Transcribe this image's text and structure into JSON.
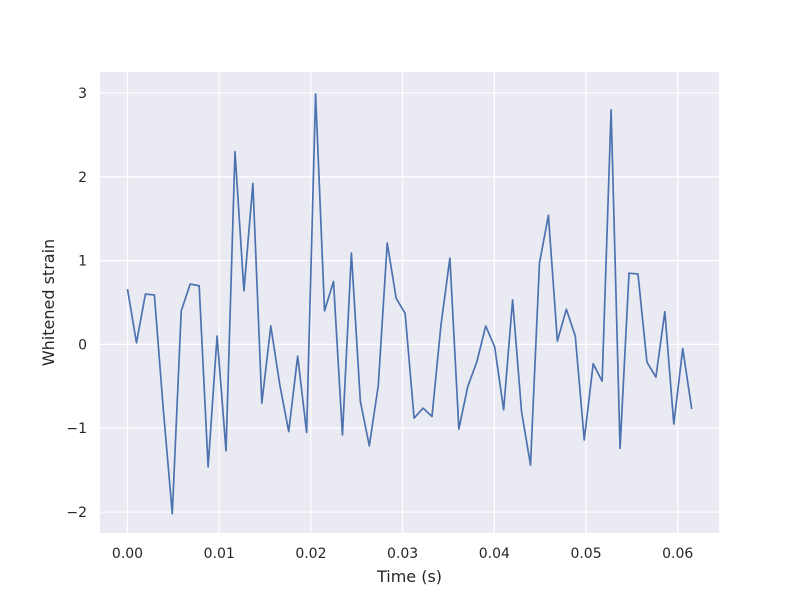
{
  "chart_data": {
    "type": "line",
    "title": "",
    "xlabel": "Time (s)",
    "ylabel": "Whitened strain",
    "xlim": [
      -0.003,
      0.0645
    ],
    "ylim": [
      -2.25,
      3.25
    ],
    "x_ticks": [
      0.0,
      0.01,
      0.02,
      0.03,
      0.04,
      0.05,
      0.06
    ],
    "x_tick_labels": [
      "0.00",
      "0.01",
      "0.02",
      "0.03",
      "0.04",
      "0.05",
      "0.06"
    ],
    "y_ticks": [
      -2,
      -1,
      0,
      1,
      2,
      3
    ],
    "y_tick_labels": [
      "−2",
      "−1",
      "0",
      "1",
      "2",
      "3"
    ],
    "grid": true,
    "background": "#eaeaf2",
    "grid_color": "#ffffff",
    "series": [
      {
        "color": "#4c72b0",
        "x": [
          0.0,
          0.000977,
          0.001953,
          0.00293,
          0.003906,
          0.004883,
          0.005859,
          0.006836,
          0.007813,
          0.008789,
          0.009766,
          0.010742,
          0.011719,
          0.012695,
          0.013672,
          0.014648,
          0.015625,
          0.016602,
          0.017578,
          0.018555,
          0.019531,
          0.020508,
          0.021484,
          0.022461,
          0.023438,
          0.024414,
          0.025391,
          0.026367,
          0.027344,
          0.02832,
          0.029297,
          0.030273,
          0.03125,
          0.032227,
          0.033203,
          0.03418,
          0.035156,
          0.036133,
          0.037109,
          0.038086,
          0.039063,
          0.040039,
          0.041016,
          0.041992,
          0.042969,
          0.043945,
          0.044922,
          0.045898,
          0.046875,
          0.047852,
          0.048828,
          0.049805,
          0.050781,
          0.051758,
          0.052734,
          0.053711,
          0.054688,
          0.055664,
          0.056641,
          0.057617,
          0.058594,
          0.05957,
          0.060547,
          0.061523
        ],
        "y": [
          0.66,
          0.02,
          0.6,
          0.59,
          -0.78,
          -2.02,
          0.4,
          0.72,
          0.7,
          -1.46,
          0.1,
          -1.27,
          2.3,
          0.64,
          1.92,
          -0.7,
          0.22,
          -0.48,
          -1.04,
          -0.14,
          -1.05,
          2.99,
          0.4,
          0.75,
          -1.08,
          1.09,
          -0.68,
          -1.21,
          -0.49,
          1.21,
          0.55,
          0.37,
          -0.88,
          -0.76,
          -0.86,
          0.23,
          1.03,
          -1.01,
          -0.5,
          -0.21,
          0.22,
          -0.03,
          -0.78,
          0.53,
          -0.8,
          -1.44,
          0.97,
          1.54,
          0.04,
          0.42,
          0.1,
          -1.14,
          -0.23,
          -0.44,
          2.8,
          -1.24,
          0.85,
          0.84,
          -0.21,
          -0.39,
          0.39,
          -0.95,
          -0.05,
          -0.77
        ]
      }
    ]
  }
}
